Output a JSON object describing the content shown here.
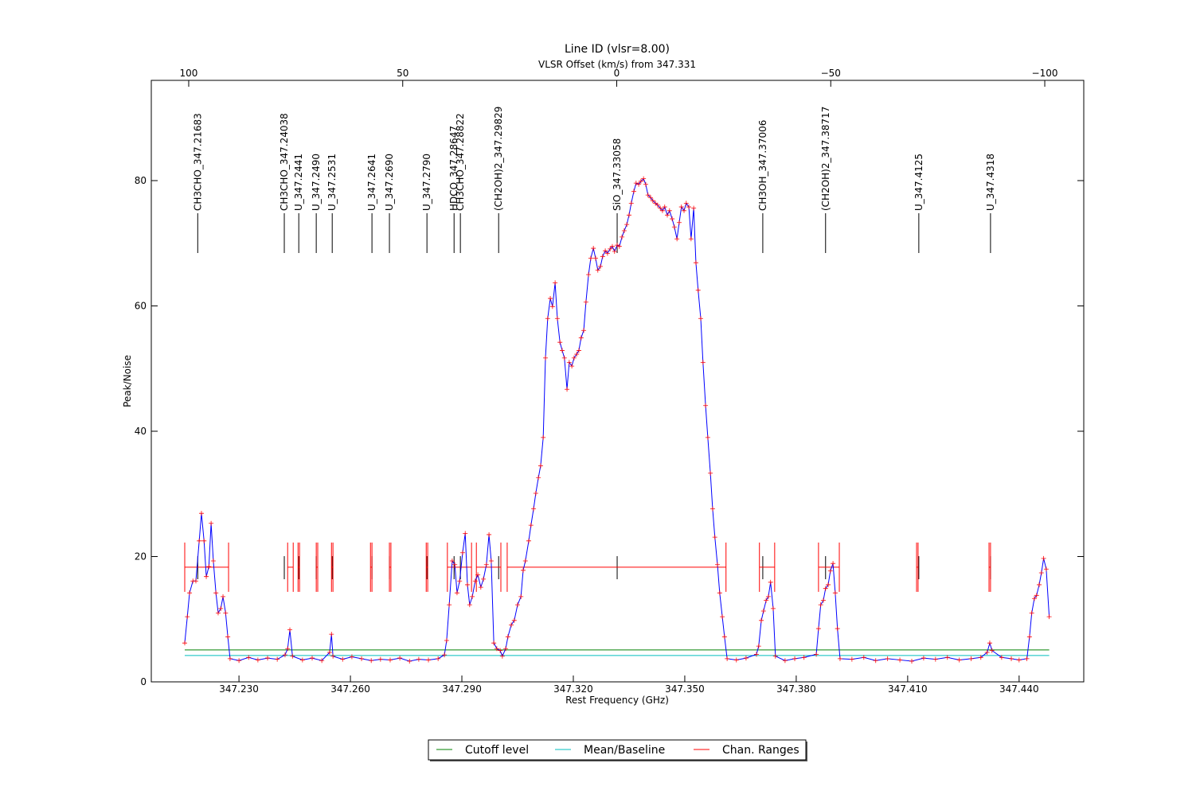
{
  "chart_data": {
    "type": "line",
    "title": "Line ID (vlsr=8.00)",
    "subtitle": "VLSR Offset (km/s) from 347.331",
    "xlabel": "Rest Frequency (GHz)",
    "ylabel": "Peak/Noise",
    "xlim": [
      347.2064,
      347.4574
    ],
    "xticks": [
      {
        "value": 347.23,
        "label": "347.230"
      },
      {
        "value": 347.26,
        "label": "347.260"
      },
      {
        "value": 347.29,
        "label": "347.290"
      },
      {
        "value": 347.32,
        "label": "347.320"
      },
      {
        "value": 347.35,
        "label": "347.350"
      },
      {
        "value": 347.38,
        "label": "347.380"
      },
      {
        "value": 347.41,
        "label": "347.410"
      },
      {
        "value": 347.44,
        "label": "347.440"
      }
    ],
    "ylim": [
      0,
      96
    ],
    "yticks": [
      0,
      20,
      40,
      60,
      80
    ],
    "x2lim": [
      108.74,
      -109.11
    ],
    "x2ticks": [
      100,
      50,
      0,
      {
        "value": -50,
        "label": "−50"
      },
      {
        "value": -100,
        "label": "−100"
      }
    ],
    "x2color": "#ff0000",
    "spectrum": {
      "color": "#0000ff",
      "marker_color": "#ff0000",
      "x": [
        347.2154,
        347.2161,
        347.2167,
        347.2176,
        347.2184,
        347.2193,
        347.2199,
        347.2206,
        347.2212,
        347.2219,
        347.2225,
        347.2231,
        347.2238,
        347.2244,
        347.2251,
        347.2257,
        347.2264,
        347.227,
        347.2276,
        347.23,
        347.2326,
        347.2351,
        347.2377,
        347.2403,
        347.2424,
        347.2431,
        347.2437,
        347.2444,
        347.2471,
        347.2497,
        347.2523,
        347.2544,
        347.2549,
        347.2553,
        347.2579,
        347.2604,
        347.263,
        347.2656,
        347.2681,
        347.2707,
        347.2733,
        347.2759,
        347.2784,
        347.281,
        347.2836,
        347.2853,
        347.2859,
        347.2866,
        347.2874,
        347.2881,
        347.2887,
        347.2894,
        347.2902,
        347.2909,
        347.2915,
        347.2921,
        347.2928,
        347.2936,
        347.2943,
        347.2951,
        347.2958,
        347.2966,
        347.2973,
        347.2979,
        347.2986,
        347.2994,
        347.3003,
        347.3009,
        347.3018,
        347.3024,
        347.3033,
        347.3041,
        347.305,
        347.3059,
        347.3065,
        347.3071,
        347.308,
        347.3086,
        347.3093,
        347.3099,
        347.3106,
        347.3112,
        347.3119,
        347.3125,
        347.3131,
        347.3138,
        347.3144,
        347.3151,
        347.3157,
        347.3164,
        347.317,
        347.3176,
        347.3183,
        347.3189,
        347.3196,
        347.3202,
        347.3209,
        347.3215,
        347.3221,
        347.3228,
        347.3234,
        347.3241,
        347.3247,
        347.3254,
        347.326,
        347.3266,
        347.3273,
        347.3279,
        347.3286,
        347.3292,
        347.3299,
        347.3305,
        347.3311,
        347.3318,
        347.3324,
        347.3331,
        347.3337,
        347.3344,
        347.335,
        347.3356,
        347.3363,
        347.3369,
        347.3376,
        347.3382,
        347.3389,
        347.3395,
        347.3401,
        347.3408,
        347.3414,
        347.3421,
        347.3427,
        347.3434,
        347.344,
        347.3446,
        347.3453,
        347.3459,
        347.3466,
        347.3472,
        347.3479,
        347.3485,
        347.3491,
        347.3498,
        347.3504,
        347.3511,
        347.3517,
        347.3524,
        347.353,
        347.3536,
        347.3543,
        347.3549,
        347.3556,
        347.3562,
        347.3569,
        347.3575,
        347.3581,
        347.3588,
        347.3594,
        347.3601,
        347.3607,
        347.3614,
        347.3639,
        347.3665,
        347.3693,
        347.3699,
        347.3706,
        347.3712,
        347.3719,
        347.3725,
        347.3731,
        347.3738,
        347.3744,
        347.377,
        347.3796,
        347.3821,
        347.3854,
        347.386,
        347.3866,
        347.3873,
        347.3879,
        347.3886,
        347.3892,
        347.3899,
        347.3905,
        347.3911,
        347.3918,
        347.395,
        347.3982,
        347.4014,
        347.4046,
        347.4079,
        347.4111,
        347.4143,
        347.4175,
        347.4207,
        347.4239,
        347.4271,
        347.4297,
        347.4314,
        347.4321,
        347.4327,
        347.4353,
        347.4379,
        347.44,
        347.4421,
        347.4428,
        347.4434,
        347.4441,
        347.4447,
        347.4454,
        347.446,
        347.4466,
        347.4473,
        347.4481
      ],
      "values": [
        6.2,
        10.4,
        14.2,
        16.1,
        16.1,
        22.5,
        26.9,
        22.5,
        16.8,
        18.4,
        25.3,
        19.3,
        14.2,
        11.0,
        11.7,
        13.6,
        11.0,
        7.2,
        3.7,
        3.4,
        3.9,
        3.5,
        3.8,
        3.6,
        4.3,
        5.3,
        8.3,
        4.1,
        3.5,
        3.8,
        3.4,
        4.7,
        7.6,
        4.1,
        3.6,
        4.0,
        3.7,
        3.4,
        3.6,
        3.5,
        3.8,
        3.3,
        3.6,
        3.5,
        3.7,
        4.3,
        6.6,
        12.3,
        19.3,
        18.7,
        14.2,
        16.1,
        20.6,
        23.7,
        15.5,
        12.3,
        13.6,
        16.1,
        17.1,
        15.1,
        16.4,
        18.7,
        23.5,
        19.3,
        6.2,
        5.3,
        5.0,
        4.1,
        5.3,
        7.2,
        9.1,
        9.8,
        12.3,
        13.6,
        17.8,
        19.3,
        22.5,
        25.0,
        27.6,
        30.1,
        32.6,
        34.5,
        39.0,
        51.7,
        58.0,
        61.2,
        59.9,
        63.7,
        58.0,
        54.2,
        52.9,
        51.7,
        46.7,
        51.0,
        50.4,
        51.7,
        52.3,
        52.9,
        54.9,
        56.1,
        60.6,
        65.0,
        67.6,
        69.2,
        67.6,
        65.7,
        66.3,
        67.9,
        68.8,
        68.4,
        69.1,
        69.5,
        68.7,
        69.7,
        69.5,
        71.0,
        72.0,
        73.0,
        74.5,
        76.4,
        78.3,
        79.6,
        79.4,
        79.9,
        80.3,
        79.4,
        77.7,
        77.3,
        76.8,
        76.4,
        76.1,
        75.6,
        75.2,
        75.8,
        74.5,
        75.2,
        73.9,
        72.6,
        70.7,
        73.3,
        75.8,
        75.2,
        76.4,
        75.8,
        70.7,
        75.6,
        66.9,
        62.5,
        58.0,
        51.0,
        44.1,
        39.0,
        33.3,
        27.6,
        23.1,
        18.7,
        14.2,
        10.4,
        7.2,
        3.7,
        3.5,
        3.8,
        4.4,
        5.7,
        9.8,
        11.3,
        13.0,
        13.6,
        15.9,
        11.7,
        4.1,
        3.4,
        3.7,
        3.9,
        4.4,
        8.5,
        12.3,
        13.0,
        14.9,
        15.5,
        17.7,
        18.9,
        14.2,
        8.5,
        3.7,
        3.6,
        3.9,
        3.4,
        3.7,
        3.5,
        3.3,
        3.8,
        3.6,
        3.9,
        3.5,
        3.7,
        3.9,
        4.7,
        6.2,
        5.0,
        3.9,
        3.7,
        3.5,
        3.7,
        7.2,
        11.0,
        13.3,
        13.8,
        15.5,
        17.4,
        19.7,
        18.0,
        10.4
      ]
    },
    "cutoff": {
      "name": "Cutoff level",
      "color": "#008000",
      "value": 5.1
    },
    "baseline": {
      "name": "Mean/Baseline",
      "color": "#00bfbf",
      "value": 4.2
    },
    "chan_ranges": {
      "name": "Chan. Ranges",
      "color": "#ff0000",
      "level": 18.3,
      "ranges": [
        [
          347.2154,
          347.2272
        ],
        [
          347.2431,
          347.2446
        ],
        [
          347.2459,
          347.2463
        ],
        [
          347.2508,
          347.2512
        ],
        [
          347.2549,
          347.2553
        ],
        [
          347.2654,
          347.2658
        ],
        [
          347.2705,
          347.2709
        ],
        [
          347.2804,
          347.2808
        ],
        [
          347.2861,
          347.2926
        ],
        [
          347.2939,
          347.3005
        ],
        [
          347.3022,
          347.3611
        ],
        [
          347.3701,
          347.3742
        ],
        [
          347.386,
          347.3916
        ],
        [
          347.4124,
          347.4128
        ],
        [
          347.4319,
          347.4323
        ]
      ]
    },
    "line_ids": {
      "color": "#000000",
      "labels": [
        "CH3CHO_347.21683",
        "CH3CHO_347.24038",
        "U_347.2441",
        "U_347.2490",
        "U_347.2531",
        "U_347.2641",
        "U_347.2690",
        "U_347.2790",
        "HDCO_347.28647",
        "CH3CHO_347.28822",
        "(CH2OH)2_347.29829",
        "SiO_347.33058",
        "CH3OH_347.37006",
        "(CH2OH)2_347.38717",
        "U_347.4125",
        "U_347.4318"
      ],
      "x": [
        347.2189,
        347.2422,
        347.2461,
        347.2508,
        347.2551,
        347.2658,
        347.2705,
        347.2806,
        347.2879,
        347.2896,
        347.2999,
        347.3318,
        347.371,
        347.3879,
        347.413,
        347.4323
      ]
    },
    "legend": "lower center"
  }
}
